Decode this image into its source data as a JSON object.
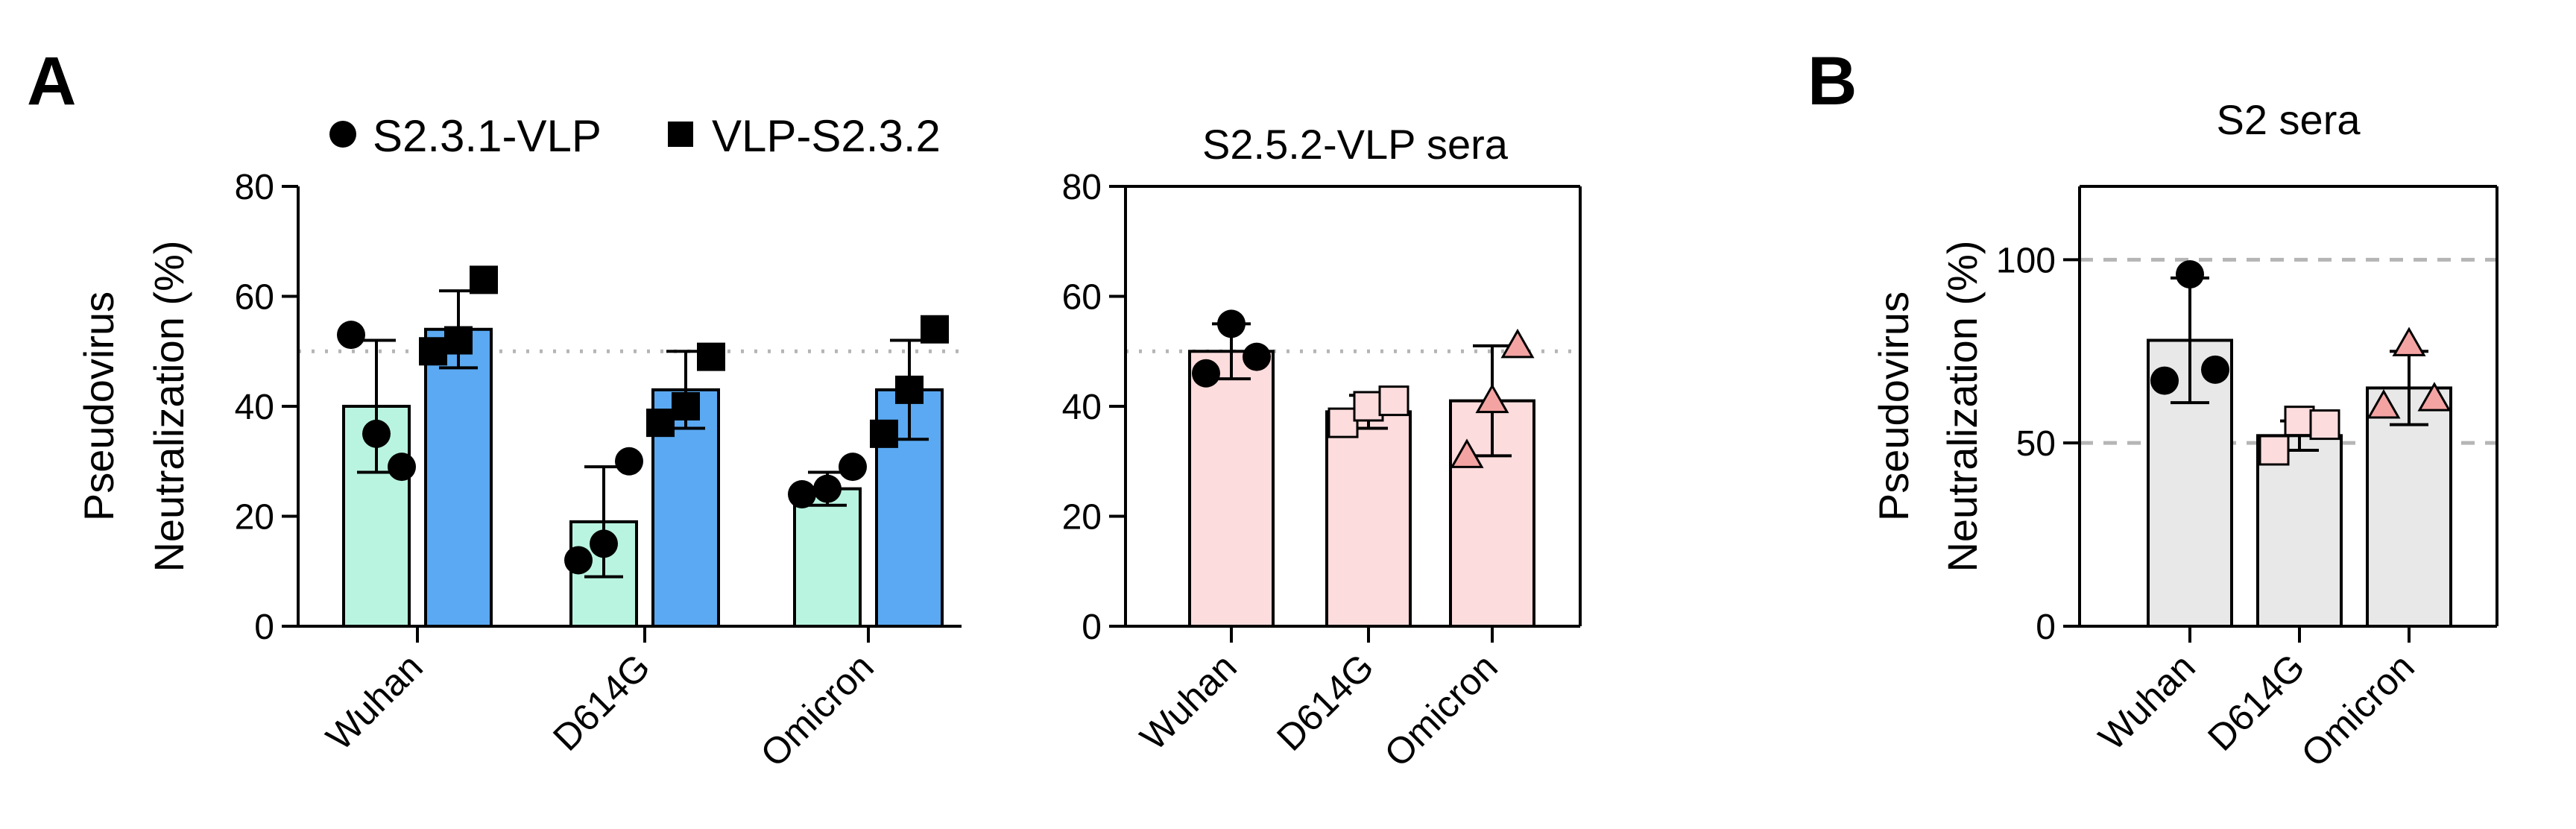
{
  "figure": {
    "panel_a_label": "A",
    "panel_b_label": "B"
  },
  "legend": {
    "entries": [
      {
        "label": "S2.3.1-VLP",
        "marker": "circle",
        "color": "#000000"
      },
      {
        "label": "VLP-S2.3.2",
        "marker": "square",
        "color": "#000000"
      }
    ]
  },
  "colors": {
    "s231": "#b9f4e1",
    "s232": "#5aa9f2",
    "s252": "#fddcdd",
    "s2": "#e8e8e8",
    "pink_marker": "#f4a3a3"
  },
  "chart_data": [
    {
      "id": "panel-a-left",
      "type": "bar",
      "title": "",
      "ylabel_line1": "Pseudovirus",
      "ylabel_line2": "Neutralization (%)",
      "ylim": [
        0,
        80
      ],
      "yticks": [
        0,
        20,
        40,
        60,
        80
      ],
      "reference_line": 50,
      "categories": [
        "Wuhan",
        "D614G",
        "Omicron"
      ],
      "series": [
        {
          "name": "S2.3.1-VLP",
          "color": "#b9f4e1",
          "marker": "circle",
          "marker_fill": "#000000",
          "values": [
            40,
            19,
            25
          ],
          "errors": [
            12,
            10,
            3
          ],
          "points": [
            [
              53,
              35,
              29
            ],
            [
              12,
              15,
              30
            ],
            [
              24,
              25,
              29
            ]
          ]
        },
        {
          "name": "VLP-S2.3.2",
          "color": "#5aa9f2",
          "marker": "square",
          "marker_fill": "#000000",
          "values": [
            54,
            43,
            43
          ],
          "errors": [
            7,
            7,
            9
          ],
          "points": [
            [
              50,
              52,
              63
            ],
            [
              37,
              40,
              49
            ],
            [
              35,
              43,
              54
            ]
          ]
        }
      ]
    },
    {
      "id": "panel-a-right",
      "type": "bar",
      "title": "S2.5.2-VLP sera",
      "ylim": [
        0,
        80
      ],
      "yticks": [
        0,
        20,
        40,
        60,
        80
      ],
      "reference_line": 50,
      "categories": [
        "Wuhan",
        "D614G",
        "Omicron"
      ],
      "series": [
        {
          "name": "S2.5.2-VLP sera",
          "color": "#fddcdd",
          "markers": [
            "circle",
            "square",
            "triangle"
          ],
          "marker_fills": [
            "#000000",
            "#fddcdd",
            "#f4a3a3"
          ],
          "values": [
            50,
            39,
            41
          ],
          "errors": [
            5,
            3,
            10
          ],
          "points": [
            [
              46,
              55,
              49
            ],
            [
              37,
              40,
              41
            ],
            [
              31,
              41,
              51
            ]
          ]
        }
      ]
    },
    {
      "id": "panel-b",
      "type": "bar",
      "title": "S2 sera",
      "ylabel_line1": "Pseudovirus",
      "ylabel_line2": "Neutralization (%)",
      "ylim": [
        0,
        120
      ],
      "yticks": [
        0,
        50,
        100
      ],
      "reference_lines": [
        50,
        100
      ],
      "categories": [
        "Wuhan",
        "D614G",
        "Omicron"
      ],
      "series": [
        {
          "name": "S2 sera",
          "color": "#e8e8e8",
          "markers": [
            "circle",
            "square",
            "triangle"
          ],
          "marker_fills": [
            "#000000",
            "#fddcdd",
            "#f4a3a3"
          ],
          "values": [
            78,
            52,
            65
          ],
          "errors": [
            17,
            4,
            10
          ],
          "points": [
            [
              67,
              96,
              70
            ],
            [
              48,
              56,
              55
            ],
            [
              60,
              77,
              62
            ]
          ]
        }
      ]
    }
  ]
}
